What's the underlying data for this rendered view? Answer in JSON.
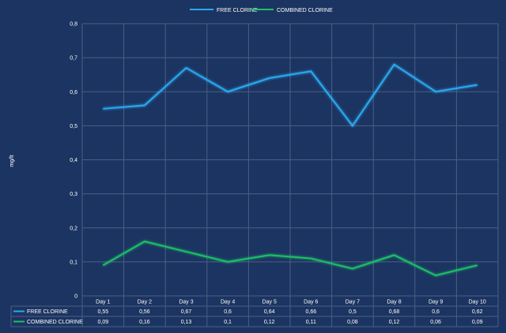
{
  "chart_data": {
    "type": "line",
    "title": "",
    "xlabel": "",
    "ylabel": "mg/lt",
    "categories": [
      "Day 1",
      "Day 2",
      "Day 3",
      "Day 4",
      "Day 5",
      "Day 6",
      "Day 7",
      "Day 8",
      "Day 9",
      "Day 10"
    ],
    "ylim": [
      0,
      0.8
    ],
    "yticks": [
      "0",
      "0,1",
      "0,2",
      "0,3",
      "0,4",
      "0,5",
      "0,6",
      "0,7",
      "0,8"
    ],
    "grid": true,
    "legend_position": "top-center",
    "series": [
      {
        "name": "FREE CLORINE",
        "color": "#29a9f0",
        "values": [
          0.55,
          0.56,
          0.67,
          0.6,
          0.64,
          0.66,
          0.5,
          0.68,
          0.6,
          0.62
        ],
        "labels": [
          "0,55",
          "0,56",
          "0,67",
          "0,6",
          "0,64",
          "0,66",
          "0,5",
          "0,68",
          "0,6",
          "0,62"
        ]
      },
      {
        "name": "COMBINED CLORINE",
        "color": "#1ec066",
        "values": [
          0.09,
          0.16,
          0.13,
          0.1,
          0.12,
          0.11,
          0.08,
          0.12,
          0.06,
          0.09
        ],
        "labels": [
          "0,09",
          "0,16",
          "0,13",
          "0,1",
          "0,12",
          "0,11",
          "0,08",
          "0,12",
          "0,06",
          "0,09"
        ]
      }
    ]
  }
}
